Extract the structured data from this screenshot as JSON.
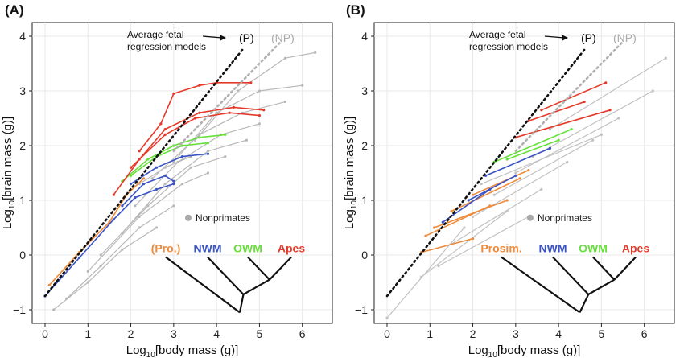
{
  "figure": {
    "panels": [
      "(A)",
      "(B)"
    ]
  },
  "chart_data": [
    {
      "panel": "(A)",
      "type": "line",
      "xlabel_main": "Log",
      "xlabel_sub": "10",
      "xlabel_rest": "[body mass (g)]",
      "ylabel_main": "Log",
      "ylabel_sub": "10",
      "ylabel_rest": "[brain mass (g)]",
      "xlim": [
        -0.3,
        6.7
      ],
      "ylim": [
        -1.25,
        4.25
      ],
      "xticks": [
        "0",
        "1",
        "2",
        "3",
        "4",
        "5",
        "6"
      ],
      "yticks": [
        "−1",
        "0",
        "1",
        "2",
        "3",
        "4"
      ],
      "grid": true,
      "annotation_line1": "Average fetal",
      "annotation_line2": "regression models",
      "label_primates": "(P)",
      "label_nonprimates": "(NP)",
      "legend_nonprimates": "Nonprimates",
      "groups": [
        {
          "label": "(Pro.)",
          "color": "#ee8a3a"
        },
        {
          "label": "NWM",
          "color": "#3a53c4"
        },
        {
          "label": "OWM",
          "color": "#66e03a"
        },
        {
          "label": "Apes",
          "color": "#e53a2a"
        }
      ],
      "colors": {
        "nonprimate": "#b8b8b8",
        "primate_fit": "#111111",
        "nonprimate_fit": "#b0b0b0"
      },
      "regression_lines": [
        {
          "name": "P",
          "x": [
            0,
            4.6
          ],
          "y": [
            -0.75,
            3.75
          ]
        },
        {
          "name": "NP",
          "x": [
            3.0,
            5.5
          ],
          "y": [
            1.9,
            3.9
          ]
        }
      ],
      "series": [
        {
          "group": "nonprimate",
          "x": [
            1.0,
            2.2,
            3.2,
            3.8
          ],
          "y": [
            -0.3,
            0.7,
            1.3,
            1.5
          ]
        },
        {
          "group": "nonprimate",
          "x": [
            1.3,
            2.4,
            3.4,
            4.2
          ],
          "y": [
            0.0,
            0.9,
            1.6,
            1.8
          ]
        },
        {
          "group": "nonprimate",
          "x": [
            1.8,
            2.8,
            3.8,
            4.7
          ],
          "y": [
            0.4,
            1.3,
            1.9,
            2.1
          ]
        },
        {
          "group": "nonprimate",
          "x": [
            2.1,
            3.1,
            4.1,
            5.0
          ],
          "y": [
            0.9,
            1.7,
            2.2,
            2.4
          ]
        },
        {
          "group": "nonprimate",
          "x": [
            2.5,
            3.6,
            4.6,
            5.6
          ],
          "y": [
            1.4,
            2.2,
            2.6,
            2.8
          ]
        },
        {
          "group": "nonprimate",
          "x": [
            3.0,
            4.0,
            5.0,
            6.0
          ],
          "y": [
            1.7,
            2.6,
            3.0,
            3.1
          ]
        },
        {
          "group": "nonprimate",
          "x": [
            3.5,
            4.5,
            5.6,
            6.3
          ],
          "y": [
            2.1,
            3.0,
            3.6,
            3.7
          ]
        },
        {
          "group": "nonprimate",
          "x": [
            0.2,
            1.0,
            1.8,
            2.6
          ],
          "y": [
            -1.0,
            -0.5,
            0.1,
            0.5
          ]
        },
        {
          "group": "nonprimate",
          "x": [
            0.5,
            1.3,
            2.2,
            3.0
          ],
          "y": [
            -0.8,
            -0.2,
            0.5,
            0.9
          ]
        },
        {
          "group": "nonprimate",
          "x": [
            2.2,
            2.8,
            3.4
          ],
          "y": [
            1.3,
            1.6,
            1.8
          ]
        },
        {
          "group": "pro",
          "x": [
            0.1,
            0.8,
            1.5,
            1.9,
            2.3
          ],
          "y": [
            -0.55,
            0.05,
            0.6,
            1.1,
            1.4
          ]
        },
        {
          "group": "nwm",
          "x": [
            0.0,
            0.8,
            1.6,
            2.1,
            2.6,
            3.0
          ],
          "y": [
            -0.75,
            -0.05,
            0.65,
            1.05,
            1.2,
            1.3
          ]
        },
        {
          "group": "nwm",
          "x": [
            1.8,
            2.3,
            2.8,
            3.0
          ],
          "y": [
            0.9,
            1.3,
            1.45,
            1.35
          ]
        },
        {
          "group": "nwm",
          "x": [
            2.0,
            2.6,
            3.2,
            3.8
          ],
          "y": [
            1.3,
            1.6,
            1.8,
            1.85
          ]
        },
        {
          "group": "owm",
          "x": [
            1.8,
            2.4,
            3.0,
            3.6,
            4.2
          ],
          "y": [
            1.35,
            1.75,
            2.0,
            2.15,
            2.2
          ]
        },
        {
          "group": "owm",
          "x": [
            2.0,
            2.6,
            3.2,
            3.8
          ],
          "y": [
            1.45,
            1.8,
            2.0,
            2.05
          ]
        },
        {
          "group": "apes",
          "x": [
            1.6,
            2.2,
            2.8,
            3.6,
            4.4,
            5.1
          ],
          "y": [
            1.1,
            1.75,
            2.3,
            2.6,
            2.7,
            2.65
          ]
        },
        {
          "group": "apes",
          "x": [
            2.2,
            2.7,
            3.0,
            3.6,
            4.0,
            4.8
          ],
          "y": [
            1.9,
            2.4,
            2.95,
            3.1,
            3.15,
            3.15
          ]
        },
        {
          "group": "apes",
          "x": [
            2.0,
            2.8,
            3.5,
            4.3,
            5.0
          ],
          "y": [
            1.6,
            2.2,
            2.5,
            2.6,
            2.55
          ]
        }
      ],
      "tree_labels": [
        "(Pro.)",
        "NWM",
        "OWM",
        "Apes"
      ]
    },
    {
      "panel": "(B)",
      "type": "line",
      "xlabel_main": "Log",
      "xlabel_sub": "10",
      "xlabel_rest": "[body mass (g)]",
      "ylabel_main": "Log",
      "ylabel_sub": "10",
      "ylabel_rest": "[brain mass (g)]",
      "xlim": [
        -0.3,
        6.7
      ],
      "ylim": [
        -1.25,
        4.25
      ],
      "xticks": [
        "0",
        "1",
        "2",
        "3",
        "4",
        "5",
        "6"
      ],
      "yticks": [
        "−1",
        "0",
        "1",
        "2",
        "3",
        "4"
      ],
      "grid": true,
      "annotation_line1": "Average fetal",
      "annotation_line2": "regression models",
      "label_primates": "(P)",
      "label_nonprimates": "(NP)",
      "legend_nonprimates": "Nonprimates",
      "groups": [
        {
          "label": "Prosim.",
          "color": "#ee8a3a"
        },
        {
          "label": "NWM",
          "color": "#3a53c4"
        },
        {
          "label": "OWM",
          "color": "#66e03a"
        },
        {
          "label": "Apes",
          "color": "#e53a2a"
        }
      ],
      "colors": {
        "nonprimate": "#c2c2c2",
        "primate_fit": "#111111",
        "nonprimate_fit": "#b0b0b0"
      },
      "regression_lines": [
        {
          "name": "P",
          "x": [
            0,
            4.6
          ],
          "y": [
            -0.75,
            3.75
          ]
        },
        {
          "name": "NP",
          "x": [
            3.0,
            5.5
          ],
          "y": [
            1.9,
            3.9
          ]
        }
      ],
      "series": [
        {
          "group": "nonprimate",
          "x": [
            0.0,
            1.8
          ],
          "y": [
            -1.15,
            0.5
          ]
        },
        {
          "group": "nonprimate",
          "x": [
            0.8,
            2.8
          ],
          "y": [
            -0.4,
            0.8
          ]
        },
        {
          "group": "nonprimate",
          "x": [
            1.5,
            3.6
          ],
          "y": [
            0.2,
            1.2
          ]
        },
        {
          "group": "nonprimate",
          "x": [
            2.0,
            4.2
          ],
          "y": [
            0.7,
            1.7
          ]
        },
        {
          "group": "nonprimate",
          "x": [
            2.5,
            4.8
          ],
          "y": [
            1.1,
            2.1
          ]
        },
        {
          "group": "nonprimate",
          "x": [
            3.0,
            5.4
          ],
          "y": [
            1.5,
            2.5
          ]
        },
        {
          "group": "nonprimate",
          "x": [
            3.4,
            6.2
          ],
          "y": [
            1.8,
            3.0
          ]
        },
        {
          "group": "nonprimate",
          "x": [
            3.8,
            6.5
          ],
          "y": [
            2.3,
            3.6
          ]
        },
        {
          "group": "nonprimate",
          "x": [
            2.2,
            5.0
          ],
          "y": [
            1.3,
            2.2
          ]
        },
        {
          "group": "nonprimate",
          "x": [
            1.2,
            3.3
          ],
          "y": [
            -0.2,
            0.7
          ]
        },
        {
          "group": "pro",
          "x": [
            0.8,
            2.0
          ],
          "y": [
            0.05,
            0.3
          ]
        },
        {
          "group": "pro",
          "x": [
            0.9,
            2.4
          ],
          "y": [
            0.35,
            0.9
          ]
        },
        {
          "group": "pro",
          "x": [
            1.1,
            2.8
          ],
          "y": [
            0.5,
            1.0
          ]
        },
        {
          "group": "pro",
          "x": [
            1.5,
            3.1
          ],
          "y": [
            0.8,
            1.4
          ]
        },
        {
          "group": "pro",
          "x": [
            2.0,
            3.3
          ],
          "y": [
            1.1,
            1.55
          ]
        },
        {
          "group": "nwm",
          "x": [
            1.3,
            2.4
          ],
          "y": [
            0.6,
            1.2
          ]
        },
        {
          "group": "nwm",
          "x": [
            1.9,
            3.0
          ],
          "y": [
            1.0,
            1.45
          ]
        },
        {
          "group": "nwm",
          "x": [
            2.3,
            3.8
          ],
          "y": [
            1.45,
            1.95
          ]
        },
        {
          "group": "owm",
          "x": [
            2.5,
            4.3
          ],
          "y": [
            1.7,
            2.3
          ]
        },
        {
          "group": "owm",
          "x": [
            2.8,
            4.0
          ],
          "y": [
            1.75,
            2.1
          ]
        },
        {
          "group": "apes",
          "x": [
            3.0,
            5.2
          ],
          "y": [
            2.15,
            2.65
          ]
        },
        {
          "group": "apes",
          "x": [
            3.3,
            4.6
          ],
          "y": [
            2.45,
            2.8
          ]
        },
        {
          "group": "apes",
          "x": [
            3.6,
            5.1
          ],
          "y": [
            2.65,
            3.15
          ]
        }
      ],
      "tree_labels": [
        "Prosim.",
        "NWM",
        "OWM",
        "Apes"
      ]
    }
  ]
}
